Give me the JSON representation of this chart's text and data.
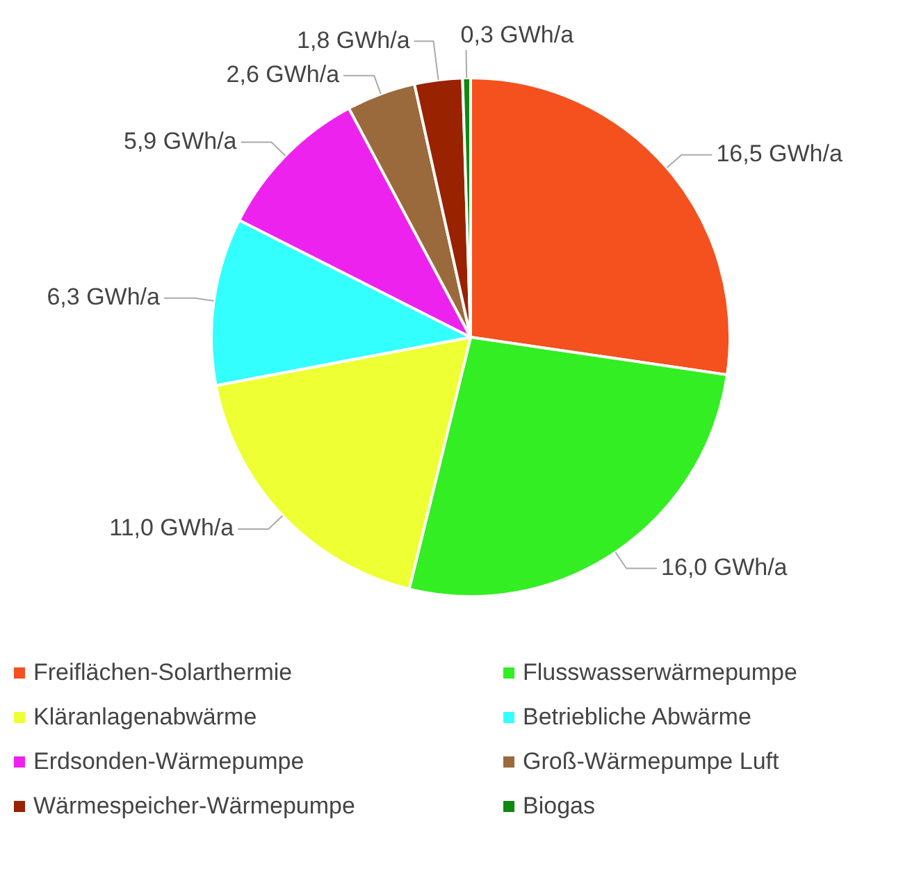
{
  "chart_data": {
    "type": "pie",
    "categories": [
      "Freiflächen-Solarthermie",
      "Flusswasserwärmepumpe",
      "Kläranlagenabwärme",
      "Betriebliche Abwärme",
      "Erdsonden-Wärmepumpe",
      "Groß-Wärmepumpe Luft",
      "Wärmespeicher-Wärmepumpe",
      "Biogas"
    ],
    "values": [
      16.5,
      16.0,
      11.0,
      6.3,
      5.9,
      2.6,
      1.8,
      0.3
    ],
    "value_labels": [
      "16,5 GWh/a",
      "16,0 GWh/a",
      "11,0 GWh/a",
      "6,3 GWh/a",
      "5,9 GWh/a",
      "2,6 GWh/a",
      "1,8 GWh/a",
      "0,3 GWh/a"
    ],
    "colors": [
      "#f4511e",
      "#33ee22",
      "#eeff33",
      "#33ffff",
      "#ee22ee",
      "#9b6a3c",
      "#992200",
      "#118811"
    ],
    "legend": "bottom"
  }
}
